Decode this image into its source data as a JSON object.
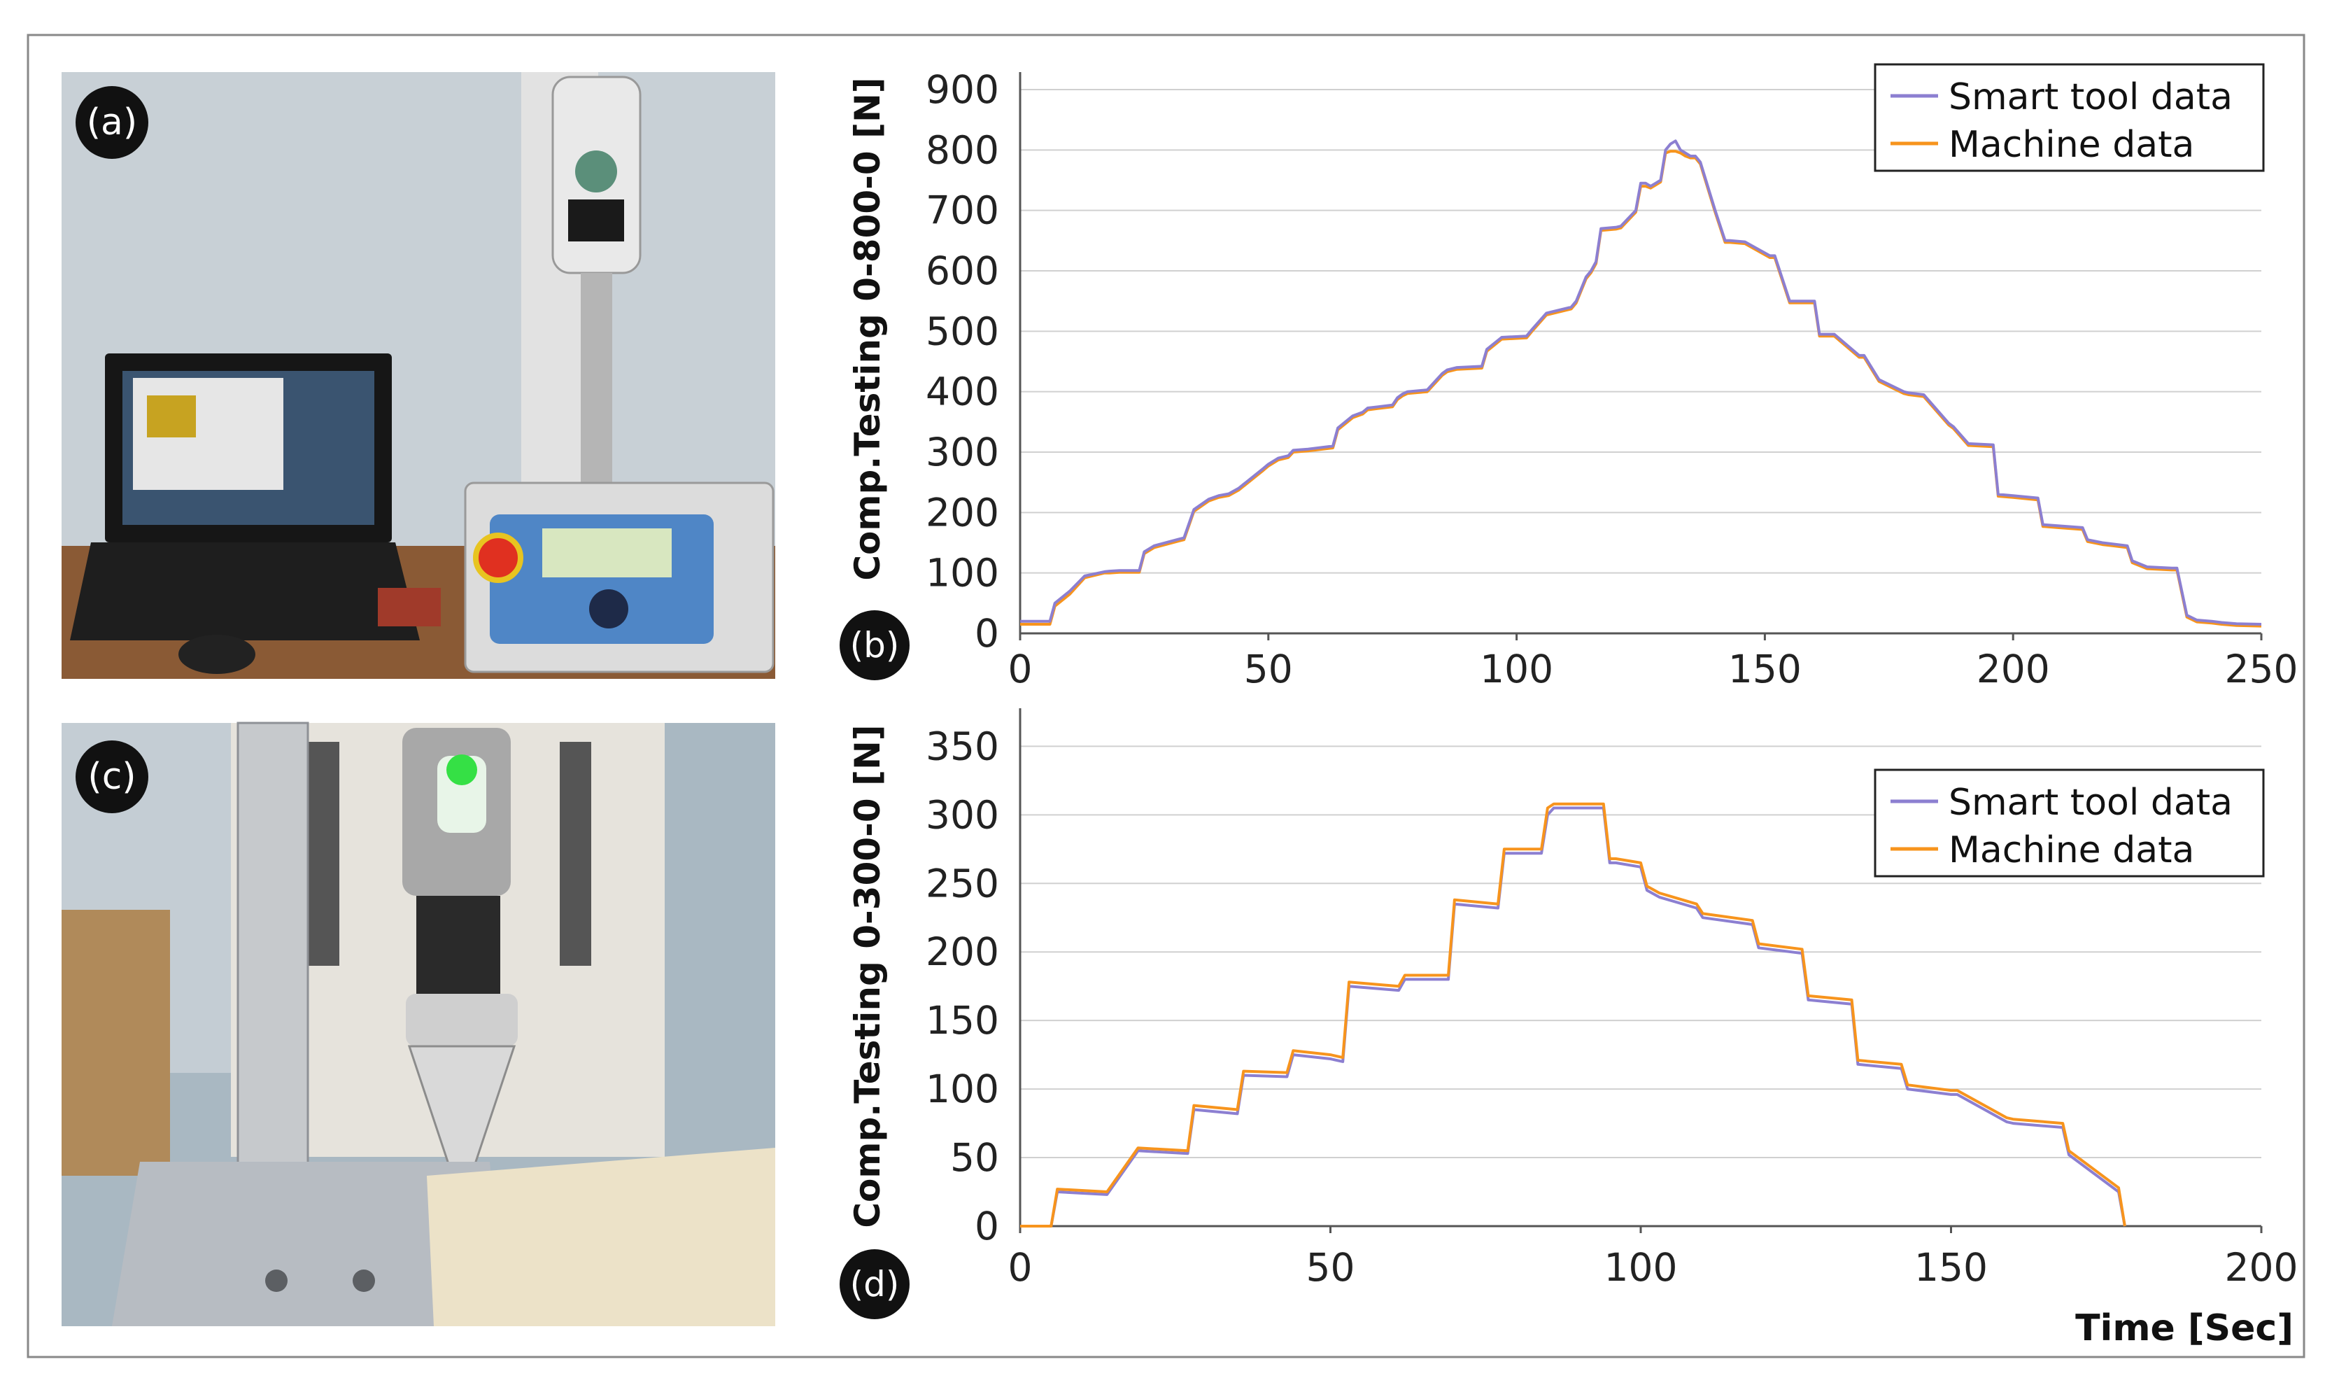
{
  "colors": {
    "smart_tool": "#8c7fd1",
    "machine": "#f7941d",
    "grid": "#d0d0d0",
    "frame": "#707070",
    "text": "#222222"
  },
  "panels": {
    "a": {
      "letter": "(a)",
      "photo": "Compression test stand with force gauge and laptop"
    },
    "b": {
      "letter": "(b)"
    },
    "c": {
      "letter": "(c)",
      "photo": "Smart tool with conical tip under test stand"
    },
    "d": {
      "letter": "(d)"
    }
  },
  "chart_data": [
    {
      "id": "b",
      "type": "line",
      "title": "",
      "xlabel": "",
      "ylabel": "Comp.Testing 0-800-0 [N]",
      "xlim": [
        0,
        250
      ],
      "ylim": [
        0,
        900
      ],
      "xticks": [
        0,
        50,
        100,
        150,
        200,
        250
      ],
      "yticks": [
        0,
        100,
        200,
        300,
        400,
        500,
        600,
        700,
        800,
        900
      ],
      "legend": [
        "Smart tool data",
        "Machine data"
      ],
      "legend_position": "top-right",
      "series": [
        {
          "name": "Smart tool data",
          "x": [
            0,
            6,
            7,
            10,
            13,
            17,
            18,
            20,
            24,
            25,
            27,
            32,
            33,
            35,
            38,
            40,
            42,
            44,
            49,
            50,
            52,
            54,
            55,
            58,
            63,
            64,
            67,
            69,
            70,
            72,
            75,
            76,
            77,
            78,
            82,
            85,
            86,
            88,
            93,
            94,
            97,
            102,
            103,
            106,
            111,
            112,
            114,
            115,
            116,
            117,
            120,
            121,
            124,
            125,
            126,
            127,
            128,
            129,
            130,
            131,
            132,
            133,
            134,
            135,
            136,
            137,
            140,
            142,
            143,
            146,
            151,
            152,
            155,
            160,
            161,
            164,
            169,
            170,
            173,
            178,
            179,
            182,
            187,
            188,
            191,
            196,
            197,
            200,
            205,
            206,
            209,
            214,
            215,
            218,
            220,
            223,
            224,
            227,
            232,
            233,
            235,
            237,
            240,
            242,
            245,
            250
          ],
          "y": [
            20,
            20,
            50,
            70,
            95,
            102,
            103,
            104,
            104,
            135,
            145,
            156,
            158,
            205,
            222,
            228,
            231,
            240,
            273,
            280,
            290,
            294,
            303,
            305,
            310,
            340,
            360,
            366,
            373,
            375,
            378,
            390,
            396,
            400,
            403,
            430,
            436,
            440,
            442,
            470,
            490,
            492,
            502,
            530,
            540,
            550,
            590,
            600,
            615,
            670,
            672,
            674,
            700,
            745,
            745,
            740,
            745,
            750,
            800,
            810,
            815,
            800,
            795,
            790,
            790,
            780,
            700,
            650,
            650,
            648,
            625,
            625,
            550,
            550,
            495,
            495,
            460,
            460,
            420,
            400,
            398,
            395,
            348,
            342,
            314,
            312,
            230,
            228,
            224,
            180,
            178,
            175,
            155,
            150,
            148,
            145,
            120,
            110,
            108,
            108,
            30,
            22,
            20,
            18,
            16,
            15
          ],
          "note": "approximate traced values"
        },
        {
          "name": "Machine data",
          "x": [
            0,
            6,
            7,
            10,
            13,
            17,
            18,
            20,
            24,
            25,
            27,
            32,
            33,
            35,
            38,
            40,
            42,
            44,
            49,
            50,
            52,
            54,
            55,
            58,
            63,
            64,
            67,
            69,
            70,
            72,
            75,
            76,
            77,
            78,
            82,
            85,
            86,
            88,
            93,
            94,
            97,
            102,
            103,
            106,
            111,
            112,
            114,
            115,
            116,
            117,
            120,
            121,
            124,
            125,
            126,
            127,
            128,
            129,
            130,
            131,
            132,
            133,
            134,
            135,
            136,
            137,
            140,
            142,
            143,
            146,
            151,
            152,
            155,
            160,
            161,
            164,
            169,
            170,
            173,
            178,
            179,
            182,
            187,
            188,
            191,
            196,
            197,
            200,
            205,
            206,
            209,
            214,
            215,
            218,
            220,
            223,
            224,
            227,
            232,
            233,
            235,
            237,
            240,
            242,
            245,
            250
          ],
          "y": [
            15,
            15,
            45,
            65,
            92,
            100,
            100,
            101,
            101,
            132,
            142,
            153,
            155,
            202,
            219,
            225,
            228,
            237,
            270,
            277,
            287,
            291,
            300,
            302,
            307,
            337,
            357,
            363,
            370,
            372,
            375,
            387,
            393,
            397,
            400,
            427,
            433,
            437,
            439,
            467,
            487,
            489,
            499,
            527,
            537,
            547,
            587,
            597,
            612,
            667,
            669,
            671,
            697,
            740,
            740,
            737,
            742,
            747,
            795,
            798,
            798,
            795,
            790,
            787,
            787,
            777,
            697,
            647,
            647,
            645,
            622,
            622,
            547,
            547,
            492,
            492,
            457,
            457,
            417,
            397,
            395,
            392,
            345,
            339,
            311,
            309,
            227,
            225,
            221,
            177,
            175,
            172,
            152,
            147,
            145,
            142,
            117,
            107,
            105,
            105,
            27,
            19,
            17,
            15,
            13,
            12
          ],
          "note": "approximate traced values"
        }
      ]
    },
    {
      "id": "d",
      "type": "line",
      "title": "",
      "xlabel": "Time [Sec]",
      "ylabel": "Comp.Testing 0-300-0 [N]",
      "xlim": [
        0,
        200
      ],
      "ylim": [
        0,
        365
      ],
      "xticks": [
        0,
        50,
        100,
        150,
        200
      ],
      "yticks": [
        0,
        50,
        100,
        150,
        200,
        250,
        300,
        350
      ],
      "legend": [
        "Smart tool data",
        "Machine data"
      ],
      "legend_position": "top-right",
      "series": [
        {
          "name": "Smart tool data",
          "x": [
            0,
            5,
            6,
            14,
            19,
            27,
            28,
            35,
            36,
            43,
            44,
            50,
            52,
            53,
            61,
            62,
            69,
            70,
            77,
            78,
            84,
            85,
            86,
            94,
            95,
            96,
            100,
            101,
            103,
            109,
            110,
            118,
            119,
            126,
            127,
            134,
            135,
            142,
            143,
            150,
            151,
            159,
            160,
            168,
            169,
            177,
            178
          ],
          "y": [
            0,
            0,
            25,
            23,
            55,
            53,
            85,
            82,
            110,
            109,
            125,
            122,
            120,
            175,
            172,
            180,
            180,
            235,
            232,
            272,
            272,
            300,
            305,
            305,
            265,
            265,
            262,
            245,
            240,
            232,
            225,
            220,
            203,
            199,
            165,
            162,
            118,
            115,
            100,
            96,
            96,
            76,
            75,
            72,
            52,
            25,
            0
          ]
        },
        {
          "name": "Machine data",
          "x": [
            0,
            5,
            6,
            14,
            19,
            27,
            28,
            35,
            36,
            43,
            44,
            50,
            52,
            53,
            61,
            62,
            69,
            70,
            77,
            78,
            84,
            85,
            86,
            94,
            95,
            96,
            100,
            101,
            103,
            109,
            110,
            118,
            119,
            126,
            127,
            134,
            135,
            142,
            143,
            150,
            151,
            159,
            160,
            168,
            169,
            177,
            178
          ],
          "y": [
            0,
            0,
            27,
            25,
            57,
            55,
            88,
            85,
            113,
            112,
            128,
            125,
            123,
            178,
            175,
            183,
            183,
            238,
            235,
            275,
            275,
            305,
            308,
            308,
            268,
            268,
            265,
            248,
            243,
            235,
            228,
            223,
            206,
            202,
            168,
            165,
            121,
            118,
            103,
            99,
            99,
            79,
            78,
            75,
            55,
            28,
            0
          ]
        }
      ]
    }
  ]
}
